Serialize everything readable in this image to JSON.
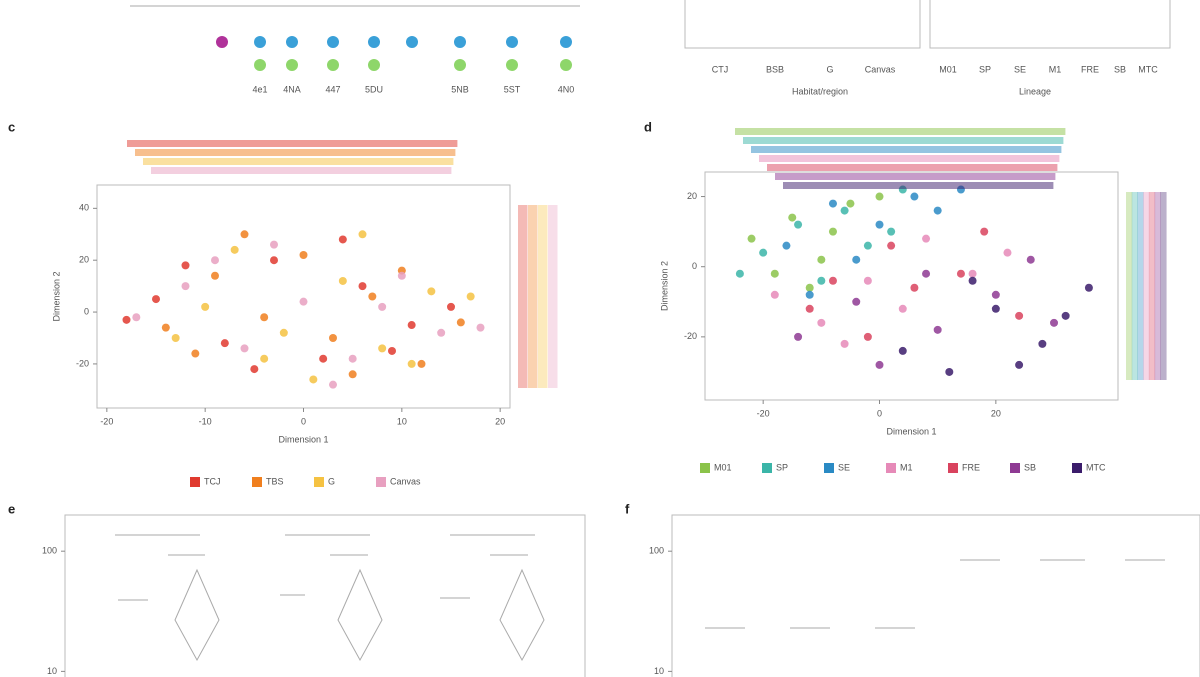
{
  "top_left": {
    "labels": [
      "4e1",
      "4NA",
      "447",
      "5DU",
      "5NB",
      "5ST",
      "4N0"
    ]
  },
  "top_right": {
    "group_labels": [
      "CTJ",
      "BSB",
      "G",
      "Canvas"
    ],
    "group_title": "Habitat/region",
    "lineage_labels": [
      "M01",
      "SP",
      "SE",
      "M1",
      "FRE",
      "SB",
      "MTC"
    ],
    "lineage_title": "Lineage"
  },
  "chart_data": [
    {
      "type": "scatter",
      "panel": "c",
      "x_label": "Dimension 1",
      "y_label": "Dimension 2",
      "xlim": [
        -21,
        21
      ],
      "ylim": [
        -37,
        49
      ],
      "xticks": [
        -20,
        -10,
        0,
        10,
        20
      ],
      "yticks": [
        -20,
        0,
        20,
        40
      ],
      "series": [
        {
          "name": "TCJ",
          "color": "#e03a2f",
          "x": [
            -15,
            -8,
            -3,
            2,
            6,
            11,
            15,
            -12,
            -5,
            4,
            9,
            -18
          ],
          "y": [
            5,
            -12,
            20,
            -18,
            10,
            -5,
            2,
            18,
            -22,
            28,
            -15,
            -3
          ]
        },
        {
          "name": "TBS",
          "color": "#f07f1e",
          "x": [
            -14,
            -9,
            -4,
            0,
            3,
            7,
            12,
            16,
            -6,
            5,
            -11,
            10
          ],
          "y": [
            -6,
            14,
            -2,
            22,
            -10,
            6,
            -20,
            -4,
            30,
            -24,
            -16,
            16
          ]
        },
        {
          "name": "G",
          "color": "#f5c242",
          "x": [
            -10,
            -2,
            4,
            8,
            13,
            -7,
            1,
            -13,
            6,
            11,
            -4,
            17
          ],
          "y": [
            2,
            -8,
            12,
            -14,
            8,
            24,
            -26,
            -10,
            30,
            -20,
            -18,
            6
          ]
        },
        {
          "name": "Canvas",
          "color": "#e8a0c0",
          "x": [
            -17,
            -12,
            -6,
            0,
            5,
            10,
            14,
            -3,
            3,
            8,
            -9,
            18
          ],
          "y": [
            -2,
            10,
            -14,
            4,
            -18,
            14,
            -8,
            26,
            -28,
            2,
            20,
            -6
          ]
        }
      ]
    },
    {
      "type": "scatter",
      "panel": "d",
      "x_label": "Dimension 1",
      "y_label": "Dimension 2",
      "xlim": [
        -30,
        41
      ],
      "ylim": [
        -38,
        27
      ],
      "xticks": [
        -20,
        0,
        20
      ],
      "yticks": [
        -20,
        0,
        20
      ],
      "series": [
        {
          "name": "M01",
          "color": "#8bc34a",
          "x": [
            -22,
            -15,
            -10,
            -5,
            -18,
            -8,
            0,
            -12
          ],
          "y": [
            8,
            14,
            2,
            18,
            -2,
            10,
            20,
            -6
          ]
        },
        {
          "name": "SP",
          "color": "#3bb5a8",
          "x": [
            -20,
            -14,
            -6,
            2,
            -10,
            -24,
            4,
            -2
          ],
          "y": [
            4,
            12,
            16,
            10,
            -4,
            -2,
            22,
            6
          ]
        },
        {
          "name": "SE",
          "color": "#2a8ac4",
          "x": [
            -16,
            -8,
            0,
            6,
            -12,
            10,
            -4,
            14
          ],
          "y": [
            6,
            18,
            12,
            20,
            -8,
            16,
            2,
            22
          ]
        },
        {
          "name": "M1",
          "color": "#e68ab8",
          "x": [
            -18,
            -10,
            -2,
            8,
            16,
            -6,
            22,
            4
          ],
          "y": [
            -8,
            -16,
            -4,
            8,
            -2,
            -22,
            4,
            -12
          ]
        },
        {
          "name": "FRE",
          "color": "#d9435e",
          "x": [
            -12,
            -2,
            6,
            14,
            24,
            2,
            18,
            -8
          ],
          "y": [
            -12,
            -20,
            -6,
            -2,
            -14,
            6,
            10,
            -4
          ]
        },
        {
          "name": "SB",
          "color": "#8e3a93",
          "x": [
            -14,
            0,
            10,
            20,
            30,
            8,
            26,
            -4
          ],
          "y": [
            -20,
            -28,
            -18,
            -8,
            -16,
            -2,
            2,
            -10
          ]
        },
        {
          "name": "MTC",
          "color": "#3b1c6b",
          "x": [
            4,
            12,
            20,
            28,
            36,
            16,
            24,
            32
          ],
          "y": [
            -24,
            -30,
            -12,
            -22,
            -6,
            -4,
            -28,
            -14
          ]
        }
      ]
    },
    {
      "type": "violin",
      "panel": "e",
      "log_scale": true,
      "ylim": [
        7,
        200
      ],
      "yticks": [
        10,
        100
      ]
    },
    {
      "type": "violin",
      "panel": "f",
      "log_scale": true,
      "ylim": [
        7,
        200
      ],
      "yticks": [
        10,
        100
      ]
    }
  ]
}
